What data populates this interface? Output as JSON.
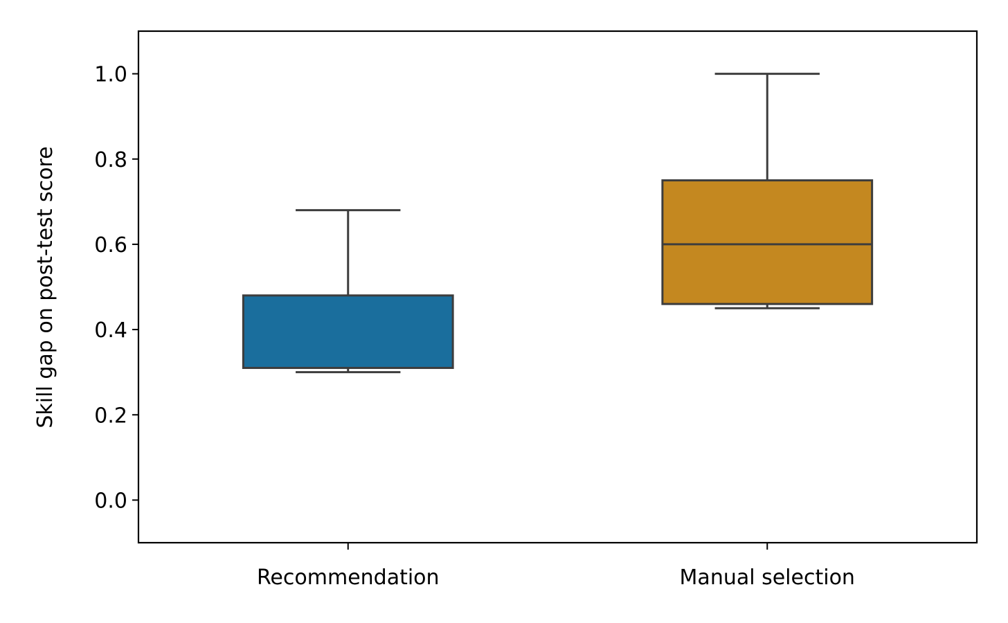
{
  "chart_data": {
    "type": "box",
    "title": "",
    "xlabel": "",
    "ylabel": "Skill gap on post-test score",
    "ylim": [
      -0.1,
      1.1
    ],
    "yticks": [
      0.0,
      0.2,
      0.4,
      0.6,
      0.8,
      1.0
    ],
    "ytick_labels": [
      "0.0",
      "0.2",
      "0.4",
      "0.6",
      "0.8",
      "1.0"
    ],
    "grid": false,
    "categories": [
      "Recommendation",
      "Manual selection"
    ],
    "boxes": [
      {
        "category": "Recommendation",
        "whisker_low": 0.3,
        "q1": 0.31,
        "median": 0.31,
        "q3": 0.48,
        "whisker_high": 0.68,
        "color": "#1a6e9d"
      },
      {
        "category": "Manual selection",
        "whisker_low": 0.45,
        "q1": 0.46,
        "median": 0.6,
        "q3": 0.75,
        "whisker_high": 1.0,
        "color": "#c48820"
      }
    ]
  }
}
